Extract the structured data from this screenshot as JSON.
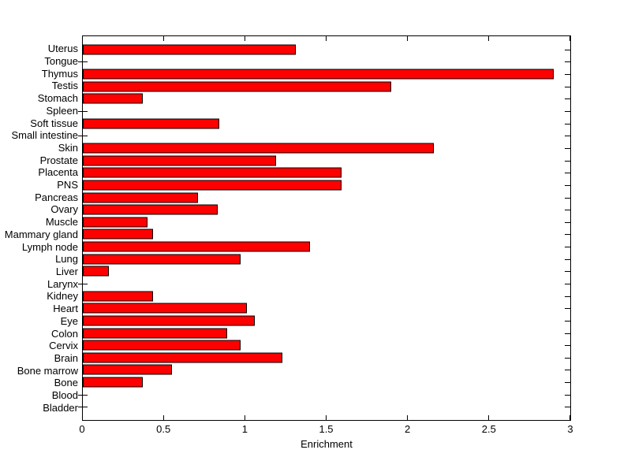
{
  "figure": {
    "background": "#ffffff",
    "axis_color": "#000000"
  },
  "chart_data": {
    "type": "bar",
    "orientation": "horizontal",
    "title": "",
    "xlabel": "Enrichment",
    "ylabel": "",
    "xlim": [
      0,
      3
    ],
    "grid": false,
    "legend_position": "none",
    "bar_color": "#ff0000",
    "bar_edge_color": "#000000",
    "xtick_values": [
      0,
      0.5,
      1,
      1.5,
      2,
      2.5,
      3
    ],
    "xtick_labels": [
      "0",
      "0.5",
      "1",
      "1.5",
      "2",
      "2.5",
      "3"
    ],
    "categories": [
      "Uterus",
      "Tongue",
      "Thymus",
      "Testis",
      "Stomach",
      "Spleen",
      "Soft tissue",
      "Small intestine",
      "Skin",
      "Prostate",
      "Placenta",
      "PNS",
      "Pancreas",
      "Ovary",
      "Muscle",
      "Mammary gland",
      "Lymph node",
      "Lung",
      "Liver",
      "Larynx",
      "Kidney",
      "Heart",
      "Eye",
      "Colon",
      "Cervix",
      "Brain",
      "Bone marrow",
      "Bone",
      "Blood",
      "Bladder"
    ],
    "values": [
      1.31,
      0,
      2.9,
      1.9,
      0.37,
      0,
      0.84,
      0,
      2.16,
      1.19,
      1.59,
      1.59,
      0.71,
      0.83,
      0.4,
      0.43,
      1.4,
      0.97,
      0.16,
      0,
      0.43,
      1.01,
      1.06,
      0.89,
      0.97,
      1.23,
      0.55,
      0.37,
      0,
      0
    ]
  }
}
